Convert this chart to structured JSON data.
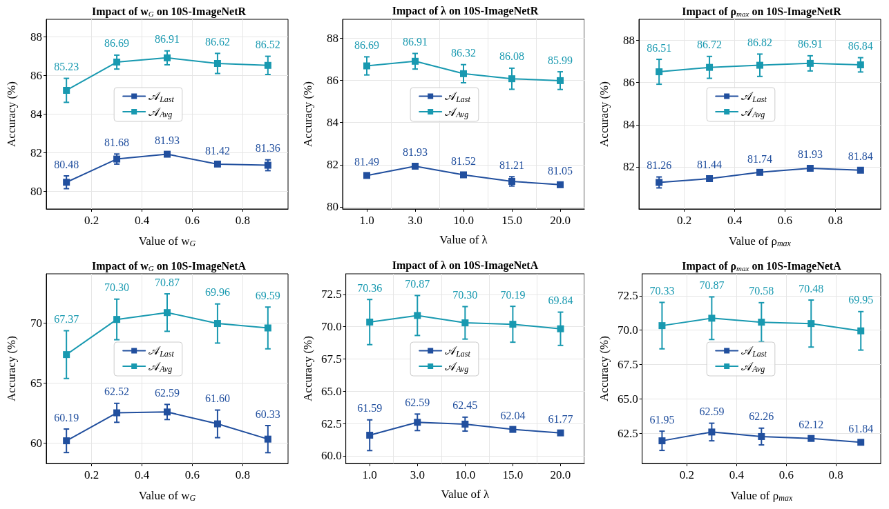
{
  "chart_data": [
    {
      "type": "line",
      "title": "Impact of w$_{G}$ on 10S-ImageNetR",
      "xlabel": "Value of w$_{G}$",
      "ylabel": "Accuracy (%)",
      "x": [
        0.1,
        0.3,
        0.5,
        0.7,
        0.9
      ],
      "xlim": [
        0.02,
        0.98
      ],
      "xticks": [
        0.2,
        0.4,
        0.6,
        0.8
      ],
      "ylim": [
        79.1,
        88.9
      ],
      "yticks": [
        80,
        82,
        84,
        86,
        88
      ],
      "grid": true,
      "legend": "center",
      "marker": "square",
      "line_style": "solid",
      "series": [
        {
          "name": "𝒜$_{Last}$",
          "color": "#214f9e",
          "values": [
            80.48,
            81.68,
            81.93,
            81.42,
            81.36
          ],
          "errors": [
            0.33,
            0.26,
            0.1,
            0.1,
            0.28
          ],
          "value_labels": [
            "80.48",
            "81.68",
            "81.93",
            "81.42",
            "81.36"
          ]
        },
        {
          "name": "𝒜$_{Avg}$",
          "color": "#1899b0",
          "values": [
            85.23,
            86.69,
            86.91,
            86.62,
            86.52
          ],
          "errors": [
            0.62,
            0.36,
            0.36,
            0.52,
            0.47
          ],
          "value_labels": [
            "85.23",
            "86.69",
            "86.91",
            "86.62",
            "86.52"
          ]
        }
      ]
    },
    {
      "type": "line",
      "title": "Impact of λ on 10S-ImageNetR",
      "xlabel": "Value of λ",
      "ylabel": "Accuracy (%)",
      "categories": [
        "1.0",
        "3.0",
        "10.0",
        "15.0",
        "20.0"
      ],
      "ylim": [
        79.9,
        88.9
      ],
      "yticks": [
        80,
        82,
        84,
        86,
        88
      ],
      "grid": true,
      "legend": "center",
      "marker": "square",
      "line_style": "solid",
      "series": [
        {
          "name": "𝒜$_{Last}$",
          "color": "#214f9e",
          "values": [
            81.49,
            81.93,
            81.52,
            81.21,
            81.05
          ],
          "errors": [
            0.1,
            0.1,
            0.1,
            0.22,
            0.1
          ],
          "value_labels": [
            "81.49",
            "81.93",
            "81.52",
            "81.21",
            "81.05"
          ]
        },
        {
          "name": "𝒜$_{Avg}$",
          "color": "#1899b0",
          "values": [
            86.69,
            86.91,
            86.32,
            86.08,
            85.99
          ],
          "errors": [
            0.43,
            0.37,
            0.43,
            0.5,
            0.42
          ],
          "value_labels": [
            "86.69",
            "86.91",
            "86.32",
            "86.08",
            "85.99"
          ]
        }
      ]
    },
    {
      "type": "line",
      "title": "Impact of ρ$_{max}$ on 10S-ImageNetR",
      "xlabel": "Value of ρ$_{max}$",
      "ylabel": "Accuracy (%)",
      "x": [
        0.1,
        0.3,
        0.5,
        0.7,
        0.9
      ],
      "xlim": [
        0.02,
        0.98
      ],
      "xticks": [
        0.2,
        0.4,
        0.6,
        0.8
      ],
      "ylim": [
        80.0,
        89.0
      ],
      "yticks": [
        82,
        84,
        86,
        88
      ],
      "grid": true,
      "legend": "center",
      "marker": "square",
      "line_style": "solid",
      "series": [
        {
          "name": "𝒜$_{Last}$",
          "color": "#214f9e",
          "values": [
            81.26,
            81.44,
            81.74,
            81.93,
            81.84
          ],
          "errors": [
            0.26,
            0.1,
            0.08,
            0.1,
            0.1
          ],
          "value_labels": [
            "81.26",
            "81.44",
            "81.74",
            "81.93",
            "81.84"
          ]
        },
        {
          "name": "𝒜$_{Avg}$",
          "color": "#1899b0",
          "values": [
            86.51,
            86.72,
            86.82,
            86.91,
            86.84
          ],
          "errors": [
            0.59,
            0.52,
            0.53,
            0.36,
            0.34
          ],
          "value_labels": [
            "86.51",
            "86.72",
            "86.82",
            "86.91",
            "86.84"
          ]
        }
      ]
    },
    {
      "type": "line",
      "title": "Impact of w$_{G}$ on 10S-ImageNetA",
      "xlabel": "Value of w$_{G}$",
      "ylabel": "Accuracy (%)",
      "x": [
        0.1,
        0.3,
        0.5,
        0.7,
        0.9
      ],
      "xlim": [
        0.02,
        0.98
      ],
      "xticks": [
        0.2,
        0.4,
        0.6,
        0.8
      ],
      "ylim": [
        58.3,
        74.1
      ],
      "yticks": [
        60,
        65,
        70
      ],
      "grid": true,
      "legend": "center",
      "marker": "square",
      "line_style": "solid",
      "series": [
        {
          "name": "𝒜$_{Last}$",
          "color": "#214f9e",
          "values": [
            60.19,
            62.52,
            62.59,
            61.6,
            60.33
          ],
          "errors": [
            0.98,
            0.79,
            0.63,
            1.15,
            1.13
          ],
          "value_labels": [
            "60.19",
            "62.52",
            "62.59",
            "61.60",
            "60.33"
          ]
        },
        {
          "name": "𝒜$_{Avg}$",
          "color": "#1899b0",
          "values": [
            67.37,
            70.3,
            70.87,
            69.96,
            69.59
          ],
          "errors": [
            1.99,
            1.69,
            1.56,
            1.63,
            1.74
          ],
          "value_labels": [
            "67.37",
            "70.30",
            "70.87",
            "69.96",
            "69.59"
          ]
        }
      ]
    },
    {
      "type": "line",
      "title": "Impact of λ on 10S-ImageNetA",
      "xlabel": "Value of λ",
      "ylabel": "Accuracy (%)",
      "categories": [
        "1.0",
        "3.0",
        "10.0",
        "15.0",
        "20.0"
      ],
      "ylim": [
        59.4,
        74.1
      ],
      "yticks": [
        {
          "value": 60,
          "label": "60.0"
        },
        {
          "value": 62.5,
          "label": "62.5"
        },
        {
          "value": 65,
          "label": "65.0"
        },
        {
          "value": 67.5,
          "label": "67.5"
        },
        {
          "value": 70,
          "label": "70.0"
        },
        {
          "value": 72.5,
          "label": "72.5"
        }
      ],
      "grid": true,
      "legend": "center",
      "marker": "square",
      "line_style": "solid",
      "series": [
        {
          "name": "𝒜$_{Last}$",
          "color": "#214f9e",
          "values": [
            61.59,
            62.59,
            62.45,
            62.04,
            61.77
          ],
          "errors": [
            1.19,
            0.64,
            0.54,
            0.15,
            0.15
          ],
          "value_labels": [
            "61.59",
            "62.59",
            "62.45",
            "62.04",
            "61.77"
          ]
        },
        {
          "name": "𝒜$_{Avg}$",
          "color": "#1899b0",
          "values": [
            70.36,
            70.87,
            70.3,
            70.19,
            69.84
          ],
          "errors": [
            1.75,
            1.55,
            1.26,
            1.39,
            1.29
          ],
          "value_labels": [
            "70.36",
            "70.87",
            "70.30",
            "70.19",
            "69.84"
          ]
        }
      ]
    },
    {
      "type": "line",
      "title": "Impact of ρ$_{max}$ on 10S-ImageNetA",
      "xlabel": "Value of ρ$_{max}$",
      "ylabel": "Accuracy (%)",
      "x": [
        0.1,
        0.3,
        0.5,
        0.7,
        0.9
      ],
      "xlim": [
        0.02,
        0.98
      ],
      "xticks": [
        0.2,
        0.4,
        0.6,
        0.8
      ],
      "ylim": [
        60.3,
        74.1
      ],
      "yticks": [
        {
          "value": 62.5,
          "label": "62.5"
        },
        {
          "value": 65,
          "label": "65.0"
        },
        {
          "value": 67.5,
          "label": "67.5"
        },
        {
          "value": 70,
          "label": "70.0"
        },
        {
          "value": 72.5,
          "label": "72.5"
        }
      ],
      "grid": true,
      "legend": "center",
      "marker": "square",
      "line_style": "solid",
      "series": [
        {
          "name": "𝒜$_{Last}$",
          "color": "#214f9e",
          "values": [
            61.95,
            62.59,
            62.26,
            62.12,
            61.84
          ],
          "errors": [
            0.7,
            0.64,
            0.61,
            0.15,
            0.15
          ],
          "value_labels": [
            "61.95",
            "62.59",
            "62.26",
            "62.12",
            "61.84"
          ]
        },
        {
          "name": "𝒜$_{Avg}$",
          "color": "#1899b0",
          "values": [
            70.33,
            70.87,
            70.58,
            70.48,
            69.95
          ],
          "errors": [
            1.69,
            1.55,
            1.42,
            1.71,
            1.4
          ],
          "value_labels": [
            "70.33",
            "70.87",
            "70.58",
            "70.48",
            "69.95"
          ]
        }
      ]
    }
  ]
}
